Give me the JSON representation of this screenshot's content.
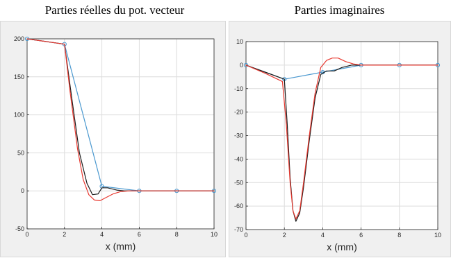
{
  "titles": {
    "left": "Parties réelles du pot. vecteur",
    "right": "Parties imaginaires"
  },
  "colors": {
    "blue": "#4a98cf",
    "red": "#e8382f",
    "black": "#1a1a1a",
    "grid": "#dcdcdc",
    "axes_bg": "#ffffff",
    "figure_bg": "#f0f0f0"
  },
  "chart_data": [
    {
      "type": "line",
      "title": "Parties réelles du pot. vecteur",
      "xlabel": "x  (mm)",
      "ylabel": "",
      "xlim": [
        0,
        10
      ],
      "ylim": [
        -50,
        200
      ],
      "xticks": [
        "0",
        "2",
        "4",
        "6",
        "8",
        "10"
      ],
      "yticks": [
        "-50",
        "0",
        "50",
        "100",
        "150",
        "200"
      ],
      "grid": true,
      "series": [
        {
          "color": "blue",
          "marker": "circle",
          "x": [
            0,
            2,
            4,
            6,
            8,
            10
          ],
          "y": [
            200,
            193,
            6,
            0,
            0,
            0
          ]
        },
        {
          "color": "black",
          "marker": "none",
          "x": [
            0,
            2,
            2.4,
            2.8,
            3.2,
            3.5,
            3.8,
            4.0,
            4.3,
            4.8,
            5.2,
            6,
            8,
            10
          ],
          "y": [
            200,
            193,
            120,
            50,
            10,
            -5,
            -4,
            4,
            4,
            1,
            0,
            0,
            0,
            0
          ]
        },
        {
          "color": "red",
          "marker": "none",
          "x": [
            0,
            2,
            2.3,
            2.7,
            3.0,
            3.3,
            3.6,
            3.9,
            4.2,
            4.6,
            5.0,
            5.5,
            6,
            8,
            10
          ],
          "y": [
            200,
            193,
            130,
            55,
            15,
            -5,
            -12,
            -13,
            -9,
            -4,
            -1,
            0,
            0,
            0,
            0
          ]
        }
      ]
    },
    {
      "type": "line",
      "title": "Parties imaginaires",
      "xlabel": "x  (mm)",
      "ylabel": "",
      "xlim": [
        0,
        10
      ],
      "ylim": [
        -70,
        10
      ],
      "xticks": [
        "0",
        "2",
        "4",
        "6",
        "8",
        "10"
      ],
      "yticks": [
        "-70",
        "-60",
        "-50",
        "-40",
        "-30",
        "-20",
        "-10",
        "0",
        "10"
      ],
      "grid": true,
      "series": [
        {
          "color": "blue",
          "marker": "circle",
          "x": [
            0,
            2,
            4,
            6,
            8,
            10
          ],
          "y": [
            0,
            -6,
            -3,
            0,
            0,
            0
          ]
        },
        {
          "color": "black",
          "marker": "none",
          "x": [
            0,
            1,
            2,
            2.15,
            2.3,
            2.45,
            2.6,
            2.8,
            3.0,
            3.3,
            3.6,
            3.9,
            4.2,
            4.6,
            5.0,
            5.5,
            6,
            8,
            10
          ],
          "y": [
            0,
            -3,
            -6,
            -25,
            -48,
            -62,
            -66.5,
            -63,
            -52,
            -32,
            -14,
            -4,
            -2.5,
            -2.5,
            -1,
            0,
            0,
            0,
            0
          ]
        },
        {
          "color": "red",
          "marker": "none",
          "x": [
            0,
            1,
            1.9,
            2.1,
            2.3,
            2.45,
            2.6,
            2.8,
            3.0,
            3.3,
            3.6,
            3.9,
            4.2,
            4.5,
            4.8,
            5.2,
            5.6,
            6,
            8,
            10
          ],
          "y": [
            0,
            -3.5,
            -7,
            -25,
            -50,
            -62,
            -65.5,
            -62,
            -50,
            -30,
            -12,
            -1,
            2,
            3,
            3,
            1.5,
            0.5,
            0,
            0,
            0
          ]
        }
      ]
    }
  ]
}
